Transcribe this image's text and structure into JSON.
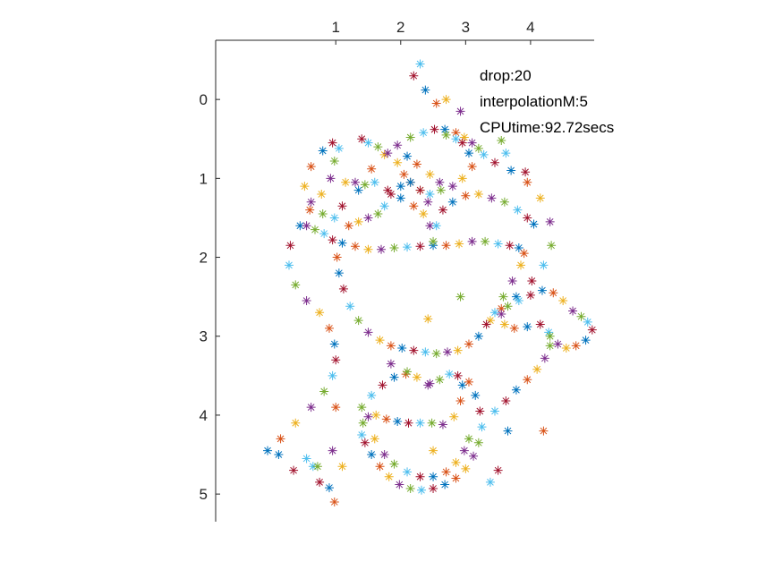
{
  "chart_data": {
    "type": "scatter",
    "marker": "asterisk",
    "title": "",
    "xlabel": "",
    "ylabel": "",
    "xlim": [
      -0.85,
      4.98
    ],
    "ylim": [
      -0.75,
      5.35
    ],
    "x_axis_location": "top",
    "y_axis_direction": "reversed",
    "grid": false,
    "x_ticks": [
      1,
      2,
      3,
      4
    ],
    "x_tick_labels": [
      "1",
      "2",
      "3",
      "4"
    ],
    "y_ticks": [
      0,
      1,
      2,
      3,
      4,
      5
    ],
    "y_tick_labels": [
      "0",
      "1",
      "2",
      "3",
      "4",
      "5"
    ],
    "annotations": [
      "drop:20",
      "interpolationM:5",
      "CPUtime:92.72secs"
    ],
    "palette": [
      "#0072BD",
      "#D95319",
      "#EDB120",
      "#7E2F8E",
      "#77AC30",
      "#4DBEEE",
      "#A2142F"
    ],
    "series": [
      {
        "x": [
          -0.05,
          0.15,
          0.38,
          0.62,
          0.82,
          0.95,
          1.0,
          0.98,
          0.9,
          0.75,
          0.55,
          0.38,
          0.28,
          0.3,
          0.45,
          0.6,
          0.78,
          0.92,
          0.98,
          1.05,
          0.95,
          0.8,
          0.62,
          0.52,
          0.62,
          0.8,
          0.98,
          1.1,
          1.35,
          1.55,
          1.75,
          1.95,
          2.15,
          2.35,
          2.52,
          2.68,
          2.85,
          2.98,
          3.1,
          3.2,
          3.28,
          3.45,
          3.7,
          3.95,
          4.15,
          4.3,
          4.32,
          4.2,
          4.02,
          3.78,
          3.55,
          3.38
        ],
        "y": [
          4.45,
          4.3,
          4.1,
          3.9,
          3.7,
          3.5,
          3.3,
          3.1,
          2.9,
          2.7,
          2.55,
          2.35,
          2.1,
          1.85,
          1.6,
          1.4,
          1.2,
          1.0,
          0.78,
          0.62,
          0.55,
          0.65,
          0.85,
          1.1,
          1.3,
          1.45,
          1.5,
          1.35,
          1.15,
          0.88,
          0.7,
          0.58,
          0.48,
          0.42,
          0.38,
          0.38,
          0.42,
          0.48,
          0.55,
          0.62,
          0.7,
          0.8,
          0.9,
          1.05,
          1.25,
          1.55,
          1.85,
          2.1,
          2.3,
          2.5,
          2.65,
          2.8
        ]
      },
      {
        "x": [
          0.55,
          0.68,
          0.82,
          0.95,
          1.1,
          1.3,
          1.5,
          1.7,
          1.9,
          2.1,
          2.3,
          2.5,
          2.7,
          2.9,
          3.1,
          3.3,
          3.5,
          3.68,
          3.82,
          3.9,
          3.85,
          3.72,
          3.58,
          3.45,
          3.32,
          3.2,
          3.05,
          2.88,
          2.72,
          2.55,
          2.38,
          2.2,
          2.02,
          1.85,
          1.68,
          1.5,
          1.35,
          1.22,
          1.12,
          1.05,
          1.02
        ],
        "y": [
          1.6,
          1.65,
          1.7,
          1.78,
          1.82,
          1.86,
          1.9,
          1.9,
          1.88,
          1.87,
          1.86,
          1.85,
          1.85,
          1.83,
          1.8,
          1.8,
          1.83,
          1.85,
          1.88,
          1.95,
          2.1,
          2.3,
          2.5,
          2.7,
          2.85,
          3.0,
          3.1,
          3.18,
          3.2,
          3.22,
          3.2,
          3.18,
          3.15,
          3.12,
          3.05,
          2.95,
          2.8,
          2.62,
          2.4,
          2.2,
          2.0
        ]
      },
      {
        "x": [
          1.15,
          1.3,
          1.45,
          1.6,
          1.8,
          2.0,
          2.2,
          2.35,
          2.45,
          2.5,
          2.55,
          2.65,
          2.8,
          3.0,
          3.2,
          3.4,
          3.6,
          3.8,
          3.95,
          4.05,
          1.2,
          1.35,
          1.5,
          1.65,
          1.75,
          1.85,
          2.0,
          2.15,
          2.3,
          2.42
        ],
        "y": [
          1.05,
          1.05,
          1.08,
          1.05,
          1.15,
          1.25,
          1.35,
          1.45,
          1.6,
          1.8,
          1.6,
          1.4,
          1.3,
          1.22,
          1.2,
          1.25,
          1.3,
          1.4,
          1.5,
          1.58,
          1.6,
          1.55,
          1.5,
          1.45,
          1.35,
          1.2,
          1.1,
          1.05,
          1.15,
          1.3
        ]
      },
      {
        "x": [
          2.7,
          2.85,
          2.95,
          3.05,
          3.1,
          2.95,
          2.8,
          2.62,
          2.45,
          2.3,
          2.15,
          2.05,
          1.95,
          1.8,
          1.65,
          1.5,
          1.4,
          2.1,
          2.25,
          2.45,
          2.6
        ],
        "y": [
          0.45,
          0.5,
          0.55,
          0.68,
          0.85,
          1.0,
          1.1,
          1.15,
          1.2,
          1.15,
          1.05,
          0.95,
          0.8,
          0.68,
          0.6,
          0.55,
          0.5,
          0.72,
          0.82,
          0.95,
          1.05
        ]
      },
      {
        "x": [
          1.4,
          1.55,
          1.72,
          1.9,
          2.08,
          2.25,
          2.42,
          2.6,
          2.75,
          2.88,
          2.95,
          2.92,
          2.82,
          2.65,
          2.48,
          2.3,
          2.12,
          1.95,
          1.78,
          1.62,
          1.5,
          1.42,
          1.4
        ],
        "y": [
          3.9,
          3.75,
          3.62,
          3.52,
          3.48,
          3.52,
          3.62,
          3.55,
          3.48,
          3.5,
          3.62,
          3.82,
          4.02,
          4.12,
          4.1,
          4.1,
          4.1,
          4.08,
          4.05,
          4.0,
          4.02,
          4.1,
          4.25
        ]
      },
      {
        "x": [
          1.45,
          1.55,
          1.68,
          1.82,
          1.98,
          2.15,
          2.32,
          2.5,
          2.68,
          2.85,
          3.0,
          3.12,
          3.2,
          3.25,
          3.22,
          3.15,
          3.05,
          1.6,
          1.75,
          1.9,
          2.1,
          2.3,
          2.5,
          2.7,
          2.85,
          2.98,
          3.05
        ],
        "y": [
          4.35,
          4.5,
          4.65,
          4.78,
          4.88,
          4.93,
          4.95,
          4.93,
          4.88,
          4.8,
          4.68,
          4.52,
          4.35,
          4.15,
          3.95,
          3.75,
          3.58,
          4.3,
          4.5,
          4.62,
          4.72,
          4.78,
          4.78,
          4.72,
          4.6,
          4.45,
          4.3
        ]
      },
      {
        "x": [
          3.45,
          3.62,
          3.78,
          3.95,
          4.1,
          4.22,
          4.3,
          4.28,
          4.15,
          3.95,
          3.75,
          3.6,
          3.55,
          3.65,
          3.82,
          4.0,
          4.18,
          4.35,
          4.5,
          4.65,
          4.78,
          4.88,
          4.95,
          4.85,
          4.7,
          4.55,
          4.42,
          4.3
        ],
        "y": [
          3.95,
          3.82,
          3.68,
          3.55,
          3.42,
          3.28,
          3.12,
          2.95,
          2.85,
          2.88,
          2.9,
          2.85,
          2.72,
          2.62,
          2.55,
          2.48,
          2.42,
          2.45,
          2.55,
          2.68,
          2.75,
          2.82,
          2.92,
          3.05,
          3.12,
          3.15,
          3.1,
          3.0
        ]
      },
      {
        "x": [
          2.3,
          2.2,
          2.38,
          2.55,
          2.7,
          2.92,
          3.55,
          3.62,
          3.92,
          3.65,
          4.2,
          2.42,
          2.45,
          2.92,
          0.65,
          0.75,
          0.9,
          0.98,
          1.1,
          0.95,
          0.72,
          0.55,
          0.35,
          0.12,
          1.0,
          2.5,
          1.85,
          2.1,
          3.38,
          3.5
        ],
        "y": [
          -0.45,
          -0.3,
          -0.12,
          0.05,
          0.0,
          0.15,
          0.52,
          0.68,
          0.92,
          4.2,
          4.2,
          2.78,
          3.6,
          2.5,
          4.65,
          4.85,
          4.92,
          5.1,
          4.65,
          4.45,
          4.65,
          4.55,
          4.7,
          4.5,
          3.9,
          4.45,
          3.35,
          3.45,
          4.85,
          4.7
        ]
      }
    ]
  }
}
